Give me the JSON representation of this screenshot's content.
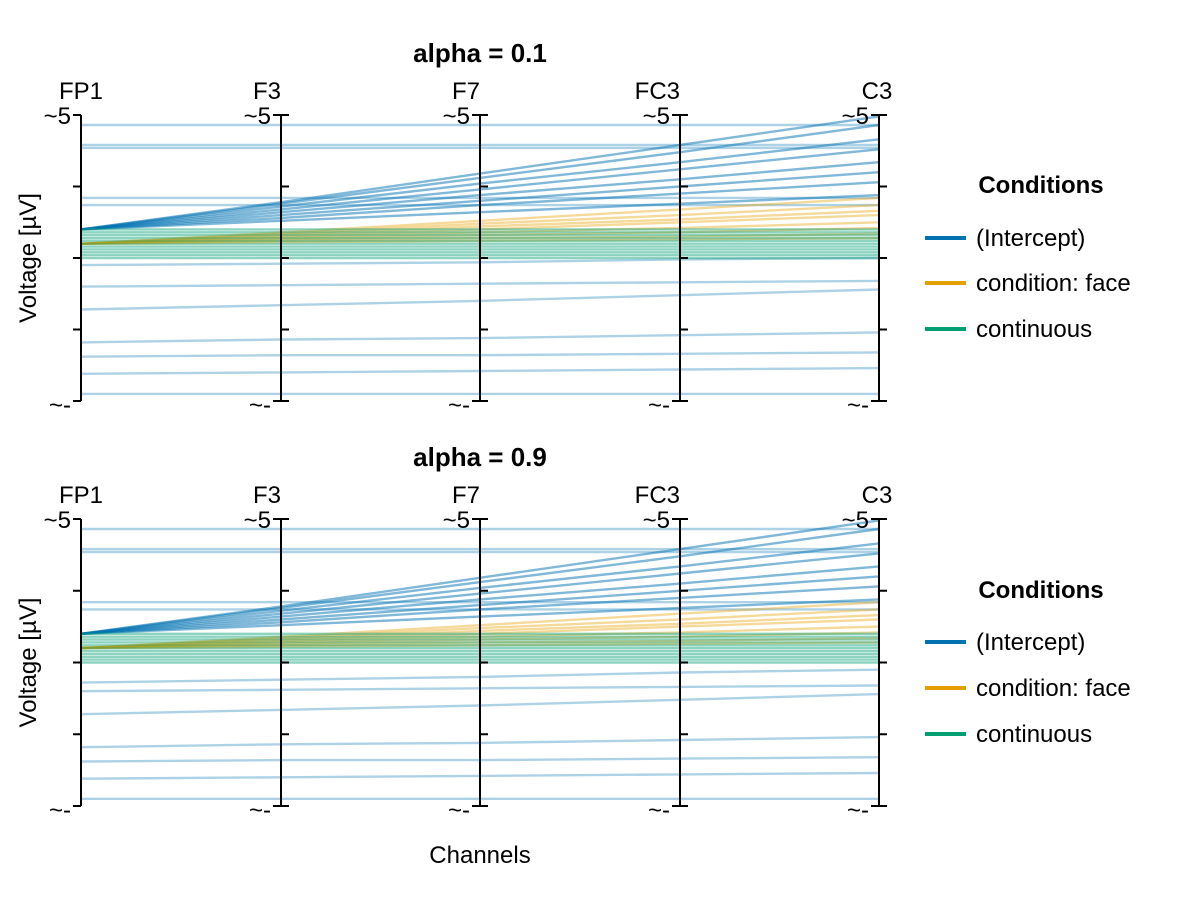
{
  "chart_data": [
    {
      "type": "line",
      "subtype": "parallel-coordinates",
      "title": "alpha = 0.1",
      "alpha": 0.1,
      "categories": [
        "FP1",
        "F3",
        "F7",
        "FC3",
        "C3"
      ],
      "ylabel": "Voltage [µV]",
      "xlabel": "",
      "axis_top_label": "~5",
      "axis_bottom_label": "~-",
      "legend": {
        "title": "Conditions",
        "placement": "right",
        "entries": [
          "(Intercept)",
          "condition: face",
          "continuous"
        ]
      },
      "series": [
        {
          "name": "(Intercept)",
          "color": "#0072B2",
          "lines": [
            [
              0.93,
              0.93,
              0.93,
              0.93,
              0.93
            ],
            [
              0.79,
              0.79,
              0.79,
              0.79,
              0.79
            ],
            [
              0.77,
              0.77,
              0.77,
              0.77,
              0.77
            ],
            [
              0.42,
              0.42,
              0.42,
              0.42,
              0.42
            ],
            [
              0.37,
              0.37,
              0.37,
              0.37,
              0.37
            ],
            [
              0.2,
              0.39,
              0.59,
              0.79,
              0.99
            ],
            [
              0.2,
              0.38,
              0.56,
              0.74,
              0.93
            ],
            [
              0.2,
              0.36,
              0.52,
              0.67,
              0.83
            ],
            [
              0.2,
              0.34,
              0.48,
              0.62,
              0.76
            ],
            [
              0.2,
              0.32,
              0.44,
              0.55,
              0.67
            ],
            [
              0.2,
              0.3,
              0.4,
              0.5,
              0.6
            ],
            [
              0.2,
              0.28,
              0.37,
              0.45,
              0.53
            ],
            [
              0.2,
              0.26,
              0.32,
              0.38,
              0.44
            ],
            [
              -0.05,
              -0.04,
              -0.03,
              -0.01,
              0.0
            ],
            [
              -0.2,
              -0.19,
              -0.18,
              -0.17,
              -0.16
            ],
            [
              -0.36,
              -0.33,
              -0.3,
              -0.26,
              -0.22
            ],
            [
              -0.59,
              -0.57,
              -0.56,
              -0.54,
              -0.52
            ],
            [
              -0.69,
              -0.68,
              -0.68,
              -0.67,
              -0.66
            ],
            [
              -0.81,
              -0.8,
              -0.79,
              -0.78,
              -0.77
            ],
            [
              -0.95,
              -0.95,
              -0.95,
              -0.95,
              -0.95
            ]
          ]
        },
        {
          "name": "condition: face",
          "color": "#E69F00",
          "lines": [
            [
              0.1,
              0.18,
              0.26,
              0.34,
              0.42
            ],
            [
              0.1,
              0.17,
              0.24,
              0.3,
              0.37
            ],
            [
              0.1,
              0.16,
              0.22,
              0.27,
              0.33
            ],
            [
              0.1,
              0.15,
              0.2,
              0.25,
              0.3
            ],
            [
              0.1,
              0.14,
              0.18,
              0.21,
              0.25
            ],
            [
              0.1,
              0.13,
              0.16,
              0.18,
              0.21
            ],
            [
              0.1,
              0.12,
              0.14,
              0.15,
              0.17
            ],
            [
              0.1,
              0.11,
              0.12,
              0.13,
              0.14
            ]
          ]
        },
        {
          "name": "continuous",
          "color": "#009E73",
          "lines": [
            [
              0.2,
              0.2,
              0.2,
              0.2,
              0.2
            ],
            [
              0.18,
              0.18,
              0.18,
              0.18,
              0.18
            ],
            [
              0.16,
              0.16,
              0.16,
              0.16,
              0.16
            ],
            [
              0.14,
              0.14,
              0.14,
              0.14,
              0.14
            ],
            [
              0.12,
              0.12,
              0.12,
              0.12,
              0.12
            ],
            [
              0.1,
              0.1,
              0.1,
              0.1,
              0.1
            ],
            [
              0.08,
              0.08,
              0.08,
              0.08,
              0.08
            ],
            [
              0.06,
              0.06,
              0.06,
              0.06,
              0.06
            ],
            [
              0.04,
              0.04,
              0.04,
              0.04,
              0.04
            ],
            [
              0.02,
              0.02,
              0.02,
              0.02,
              0.02
            ],
            [
              0.0,
              0.0,
              0.0,
              0.0,
              0.0
            ]
          ]
        }
      ]
    },
    {
      "type": "line",
      "subtype": "parallel-coordinates",
      "title": "alpha = 0.9",
      "alpha": 0.9,
      "categories": [
        "FP1",
        "F3",
        "F7",
        "FC3",
        "C3"
      ],
      "ylabel": "Voltage [µV]",
      "xlabel": "Channels",
      "axis_top_label": "~5",
      "axis_bottom_label": "~-",
      "legend": {
        "title": "Conditions",
        "placement": "right",
        "entries": [
          "(Intercept)",
          "condition: face",
          "continuous"
        ]
      },
      "series": [
        {
          "name": "(Intercept)",
          "color": "#0072B2",
          "lines": [
            [
              0.93,
              0.93,
              0.93,
              0.93,
              0.93
            ],
            [
              0.79,
              0.79,
              0.79,
              0.79,
              0.79
            ],
            [
              0.77,
              0.77,
              0.77,
              0.77,
              0.77
            ],
            [
              0.42,
              0.42,
              0.42,
              0.42,
              0.42
            ],
            [
              0.37,
              0.37,
              0.37,
              0.37,
              0.37
            ],
            [
              0.2,
              0.39,
              0.59,
              0.79,
              0.99
            ],
            [
              0.2,
              0.38,
              0.56,
              0.74,
              0.93
            ],
            [
              0.2,
              0.36,
              0.52,
              0.67,
              0.83
            ],
            [
              0.2,
              0.34,
              0.48,
              0.62,
              0.76
            ],
            [
              0.2,
              0.32,
              0.44,
              0.55,
              0.67
            ],
            [
              0.2,
              0.3,
              0.4,
              0.5,
              0.6
            ],
            [
              0.2,
              0.28,
              0.37,
              0.45,
              0.53
            ],
            [
              0.2,
              0.26,
              0.32,
              0.38,
              0.44
            ],
            [
              -0.14,
              -0.12,
              -0.1,
              -0.07,
              -0.05
            ],
            [
              -0.2,
              -0.19,
              -0.18,
              -0.17,
              -0.16
            ],
            [
              -0.36,
              -0.33,
              -0.3,
              -0.26,
              -0.22
            ],
            [
              -0.59,
              -0.57,
              -0.56,
              -0.54,
              -0.52
            ],
            [
              -0.69,
              -0.68,
              -0.68,
              -0.67,
              -0.66
            ],
            [
              -0.81,
              -0.8,
              -0.79,
              -0.78,
              -0.77
            ],
            [
              -0.95,
              -0.95,
              -0.95,
              -0.95,
              -0.95
            ]
          ]
        },
        {
          "name": "condition: face",
          "color": "#E69F00",
          "lines": [
            [
              0.1,
              0.18,
              0.26,
              0.34,
              0.42
            ],
            [
              0.1,
              0.17,
              0.24,
              0.3,
              0.37
            ],
            [
              0.1,
              0.16,
              0.22,
              0.27,
              0.33
            ],
            [
              0.1,
              0.15,
              0.2,
              0.25,
              0.3
            ],
            [
              0.1,
              0.14,
              0.18,
              0.21,
              0.25
            ],
            [
              0.1,
              0.13,
              0.16,
              0.18,
              0.21
            ],
            [
              0.1,
              0.12,
              0.14,
              0.15,
              0.17
            ],
            [
              0.1,
              0.11,
              0.12,
              0.13,
              0.14
            ]
          ]
        },
        {
          "name": "continuous",
          "color": "#009E73",
          "lines": [
            [
              0.2,
              0.2,
              0.2,
              0.2,
              0.2
            ],
            [
              0.18,
              0.18,
              0.18,
              0.18,
              0.18
            ],
            [
              0.16,
              0.16,
              0.16,
              0.16,
              0.16
            ],
            [
              0.14,
              0.14,
              0.14,
              0.14,
              0.14
            ],
            [
              0.12,
              0.12,
              0.12,
              0.12,
              0.12
            ],
            [
              0.1,
              0.1,
              0.1,
              0.1,
              0.1
            ],
            [
              0.08,
              0.08,
              0.08,
              0.08,
              0.08
            ],
            [
              0.06,
              0.06,
              0.06,
              0.06,
              0.06
            ],
            [
              0.04,
              0.04,
              0.04,
              0.04,
              0.04
            ],
            [
              0.02,
              0.02,
              0.02,
              0.02,
              0.02
            ],
            [
              0.0,
              0.0,
              0.0,
              0.0,
              0.0
            ]
          ]
        }
      ]
    }
  ]
}
